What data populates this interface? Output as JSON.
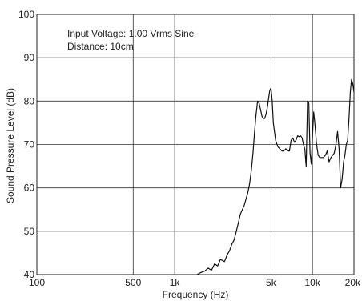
{
  "chart_data": {
    "type": "line",
    "title": "",
    "xlabel": "Frequency (Hz)",
    "ylabel": "Sound Pressure Level (dB)",
    "x_scale": "log",
    "xlim": [
      100,
      20000
    ],
    "ylim": [
      40,
      100
    ],
    "x_ticks": [
      100,
      500,
      1000,
      5000,
      10000,
      20000
    ],
    "x_tick_labels": [
      "100",
      "500",
      "1k",
      "5k",
      "10k",
      "20k"
    ],
    "y_ticks": [
      40,
      50,
      60,
      70,
      80,
      90,
      100
    ],
    "y_tick_labels": [
      "40",
      "50",
      "60",
      "70",
      "80",
      "90",
      "100"
    ],
    "grid": true,
    "annotations": [
      "Input Voltage: 1.00 Vrms Sine",
      "Distance: 10cm"
    ],
    "series": [
      {
        "x": [
          1450,
          1550,
          1650,
          1750,
          1850,
          1950,
          2050,
          2150,
          2300,
          2400,
          2500,
          2600,
          2700,
          2800,
          2900,
          3000,
          3100,
          3200,
          3300,
          3400,
          3500,
          3600,
          3700,
          3800,
          3900,
          4000,
          4100,
          4200,
          4300,
          4400,
          4500,
          4600,
          4700,
          4800,
          4900,
          5000,
          5100,
          5200,
          5400,
          5600,
          5800,
          6000,
          6200,
          6400,
          6600,
          6800,
          7000,
          7200,
          7400,
          7600,
          7800,
          8000,
          8200,
          8400,
          8600,
          8800,
          9000,
          9200,
          9400,
          9600,
          9800,
          10000,
          10200,
          10400,
          10700,
          11000,
          11300,
          11600,
          12000,
          12400,
          12800,
          13200,
          13600,
          14000,
          14400,
          14800,
          15200,
          15600,
          16000,
          16400,
          16800,
          17200,
          17600,
          18000,
          18400,
          18800,
          19200,
          19600,
          20000
        ],
        "values": [
          40.0,
          40.5,
          40.8,
          41.5,
          41.0,
          42.5,
          42.0,
          43.5,
          43.0,
          44.5,
          45.5,
          47.0,
          48.0,
          50.0,
          52.0,
          54.0,
          55.0,
          56.0,
          57.5,
          59.0,
          61.0,
          64.0,
          68.0,
          73.0,
          77.0,
          80.0,
          79.5,
          78.0,
          76.5,
          76.0,
          76.0,
          77.0,
          78.5,
          80.5,
          82.5,
          83.0,
          80.0,
          75.0,
          71.0,
          69.5,
          69.0,
          68.5,
          68.5,
          69.0,
          68.5,
          68.5,
          71.0,
          71.5,
          70.5,
          71.0,
          72.0,
          71.8,
          72.0,
          71.5,
          70.0,
          69.0,
          65.0,
          80.0,
          79.5,
          68.0,
          65.5,
          72.0,
          77.5,
          75.0,
          70.0,
          67.5,
          67.0,
          67.0,
          67.0,
          67.5,
          68.5,
          66.0,
          67.0,
          67.5,
          68.0,
          70.0,
          73.0,
          69.0,
          60.0,
          62.0,
          66.0,
          67.5,
          70.0,
          71.0,
          76.0,
          82.0,
          85.0,
          84.0,
          82.0
        ]
      }
    ]
  }
}
